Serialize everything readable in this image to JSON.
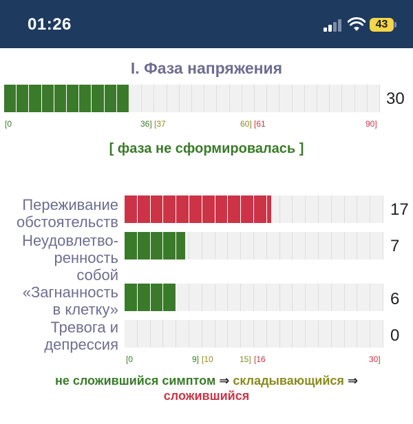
{
  "status_bar": {
    "time": "01:26",
    "battery": "43",
    "icons": [
      "signal-icon",
      "wifi-icon",
      "battery-icon"
    ]
  },
  "colors": {
    "green": "#3a7a2a",
    "olive": "#8a8a1f",
    "red": "#cc3346",
    "label": "#6d6d92",
    "track": "#f1f1f1"
  },
  "phase": {
    "title": "I. Фаза напряжения",
    "value": "30",
    "score": 30,
    "max": 90,
    "segments": 30,
    "status": "[ фаза не сформировалась ]",
    "ticks": {
      "t0": "[0",
      "t36": "36]",
      "t37": "[37",
      "t60": "60]",
      "t61": "[61",
      "t90": "90]"
    }
  },
  "symptoms": {
    "max": 30,
    "segments": 20,
    "items": [
      {
        "label_l1": "Переживание",
        "label_l2": "обстоятельств",
        "label_l3": "",
        "value": "17",
        "score": 17
      },
      {
        "label_l1": "Неудовлетво-",
        "label_l2": "ренность",
        "label_l3": "собой",
        "value": "7",
        "score": 7
      },
      {
        "label_l1": "«Загнанность",
        "label_l2": "в клетку»",
        "label_l3": "",
        "value": "6",
        "score": 6
      },
      {
        "label_l1": "Тревога и",
        "label_l2": "депрессия",
        "label_l3": "",
        "value": "0",
        "score": 0
      }
    ],
    "ticks": {
      "t0": "[0",
      "t9": "9]",
      "t10": "[10",
      "t15": "15]",
      "t16": "[16",
      "t30": "30]"
    }
  },
  "legend": {
    "not_formed": "не сложившийся симптом",
    "arrow1": "⇒",
    "forming": "складывающийся",
    "arrow2": "⇒",
    "formed": "сложившийся"
  }
}
